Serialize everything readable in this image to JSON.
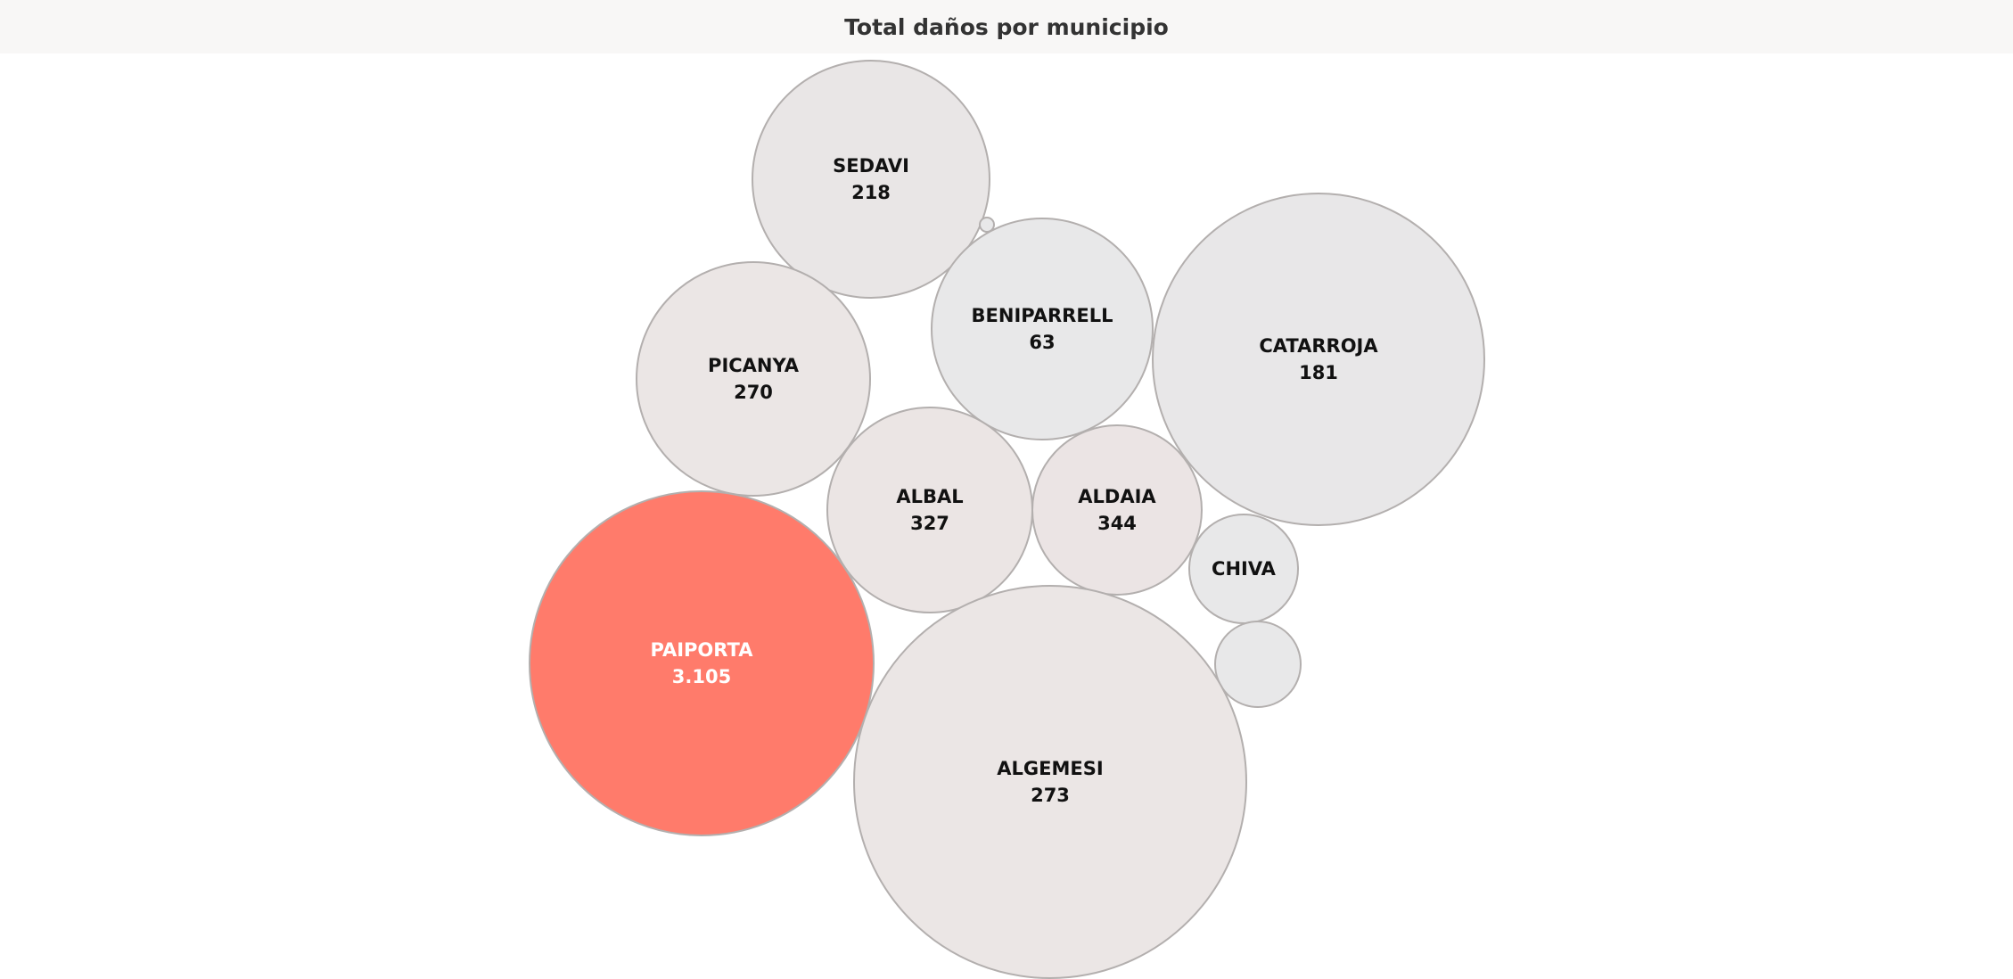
{
  "chart_data": {
    "type": "bubble",
    "title": "Total daños por municipio",
    "highlight_color": "#ff7b6b",
    "bubbles": [
      {
        "name": "SEDAVI",
        "value": "218",
        "fill": "#e9e6e6"
      },
      {
        "name": "BENIPARRELL",
        "value": "63",
        "fill": "#e8e8e9"
      },
      {
        "name": "CATARROJA",
        "value": "181",
        "fill": "#e8e7e8"
      },
      {
        "name": "PICANYA",
        "value": "270",
        "fill": "#ebe6e5"
      },
      {
        "name": "ALBAL",
        "value": "327",
        "fill": "#ebe5e4"
      },
      {
        "name": "ALDAIA",
        "value": "344",
        "fill": "#ebe4e4"
      },
      {
        "name": "CHIVA",
        "value": "",
        "fill": "#e8e8e9"
      },
      {
        "name": "",
        "value": "",
        "fill": "#e8e8e9"
      },
      {
        "name": "PAIPORTA",
        "value": "3.105",
        "fill": "#ff7b6b"
      },
      {
        "name": "ALGEMESI",
        "value": "273",
        "fill": "#ebe6e5"
      },
      {
        "name": "",
        "value": "",
        "fill": "#e8e8e9"
      }
    ]
  }
}
